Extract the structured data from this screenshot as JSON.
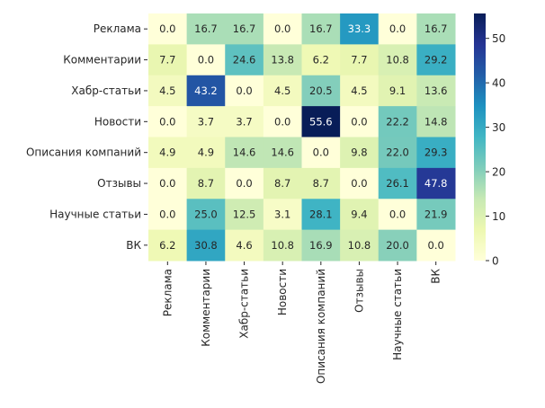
{
  "chart_data": {
    "type": "heatmap",
    "title": "",
    "xlabel": "",
    "ylabel": "",
    "row_labels": [
      "Реклама",
      "Комментарии",
      "Хабр-статьи",
      "Новости",
      "Описания компаний",
      "Отзывы",
      "Научные статьи",
      "ВК"
    ],
    "col_labels": [
      "Реклама",
      "Комментарии",
      "Хабр-статьи",
      "Новости",
      "Описания компаний",
      "Отзывы",
      "Научные статьи",
      "ВК"
    ],
    "values": [
      [
        0.0,
        16.7,
        16.7,
        0.0,
        16.7,
        33.3,
        0.0,
        16.7
      ],
      [
        7.7,
        0.0,
        24.6,
        13.8,
        6.2,
        7.7,
        10.8,
        29.2
      ],
      [
        4.5,
        43.2,
        0.0,
        4.5,
        20.5,
        4.5,
        9.1,
        13.6
      ],
      [
        0.0,
        3.7,
        3.7,
        0.0,
        55.6,
        0.0,
        22.2,
        14.8
      ],
      [
        4.9,
        4.9,
        14.6,
        14.6,
        0.0,
        9.8,
        22.0,
        29.3
      ],
      [
        0.0,
        8.7,
        0.0,
        8.7,
        8.7,
        0.0,
        26.1,
        47.8
      ],
      [
        0.0,
        25.0,
        12.5,
        3.1,
        28.1,
        9.4,
        0.0,
        21.9
      ],
      [
        6.2,
        30.8,
        4.6,
        10.8,
        16.9,
        10.8,
        20.0,
        0.0
      ]
    ],
    "annotation_format": "0.1f",
    "colormap": "YlGnBu",
    "vmin": 0,
    "vmax": 55.6,
    "colorbar": {
      "ticks": [
        0,
        10,
        20,
        30,
        40,
        50
      ],
      "tick_labels": [
        "0",
        "10",
        "20",
        "30",
        "40",
        "50"
      ],
      "placement": "right"
    }
  }
}
